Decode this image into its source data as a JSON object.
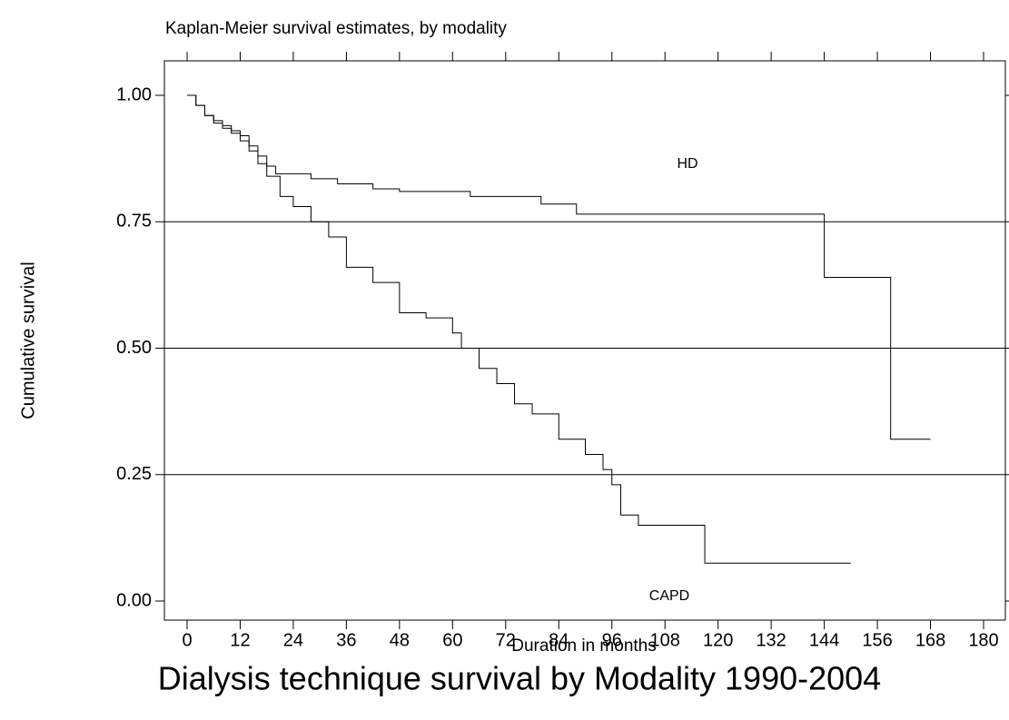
{
  "chart_data": {
    "type": "step",
    "title": "Kaplan-Meier survival estimates, by modality",
    "subtitle": "Dialysis technique survival by Modality 1990-2004",
    "x_label": "Duration in months",
    "y_label": "Cumulative survival",
    "annotations": [
      "HD",
      "CAPD"
    ],
    "xlim": [
      0,
      180
    ],
    "xticks": [
      0,
      12,
      24,
      36,
      48,
      60,
      72,
      84,
      96,
      108,
      120,
      132,
      144,
      156,
      168,
      180
    ],
    "ylim": [
      0,
      1
    ],
    "yticks": [
      {
        "value": 0,
        "label": "0.00"
      },
      {
        "value": 0.25,
        "label": "0.25"
      },
      {
        "value": 0.5,
        "label": "0.50"
      },
      {
        "value": 0.75,
        "label": "0.75"
      },
      {
        "value": 1,
        "label": "1.00"
      }
    ],
    "grid": true,
    "series": [
      {
        "name": "HD",
        "color": "#000000",
        "x": [
          0,
          2,
          4,
          6,
          8,
          10,
          12,
          14,
          16,
          18,
          20,
          28,
          34,
          42,
          48,
          64,
          80,
          88,
          144,
          159,
          168
        ],
        "values": [
          1.0,
          0.98,
          0.96,
          0.95,
          0.94,
          0.93,
          0.92,
          0.9,
          0.88,
          0.86,
          0.845,
          0.835,
          0.825,
          0.815,
          0.81,
          0.8,
          0.785,
          0.765,
          0.64,
          0.32,
          0.32
        ]
      },
      {
        "name": "CAPD",
        "color": "#000000",
        "x": [
          0,
          2,
          4,
          6,
          8,
          10,
          12,
          14,
          16,
          18,
          21,
          24,
          28,
          32,
          36,
          42,
          48,
          54,
          60,
          62,
          66,
          70,
          74,
          78,
          84,
          90,
          94,
          96,
          98,
          102,
          117,
          150
        ],
        "values": [
          1.0,
          0.98,
          0.96,
          0.945,
          0.935,
          0.925,
          0.91,
          0.89,
          0.865,
          0.84,
          0.8,
          0.78,
          0.75,
          0.72,
          0.66,
          0.63,
          0.57,
          0.56,
          0.53,
          0.5,
          0.46,
          0.43,
          0.39,
          0.37,
          0.32,
          0.29,
          0.26,
          0.23,
          0.17,
          0.15,
          0.075,
          0.075
        ]
      }
    ]
  }
}
